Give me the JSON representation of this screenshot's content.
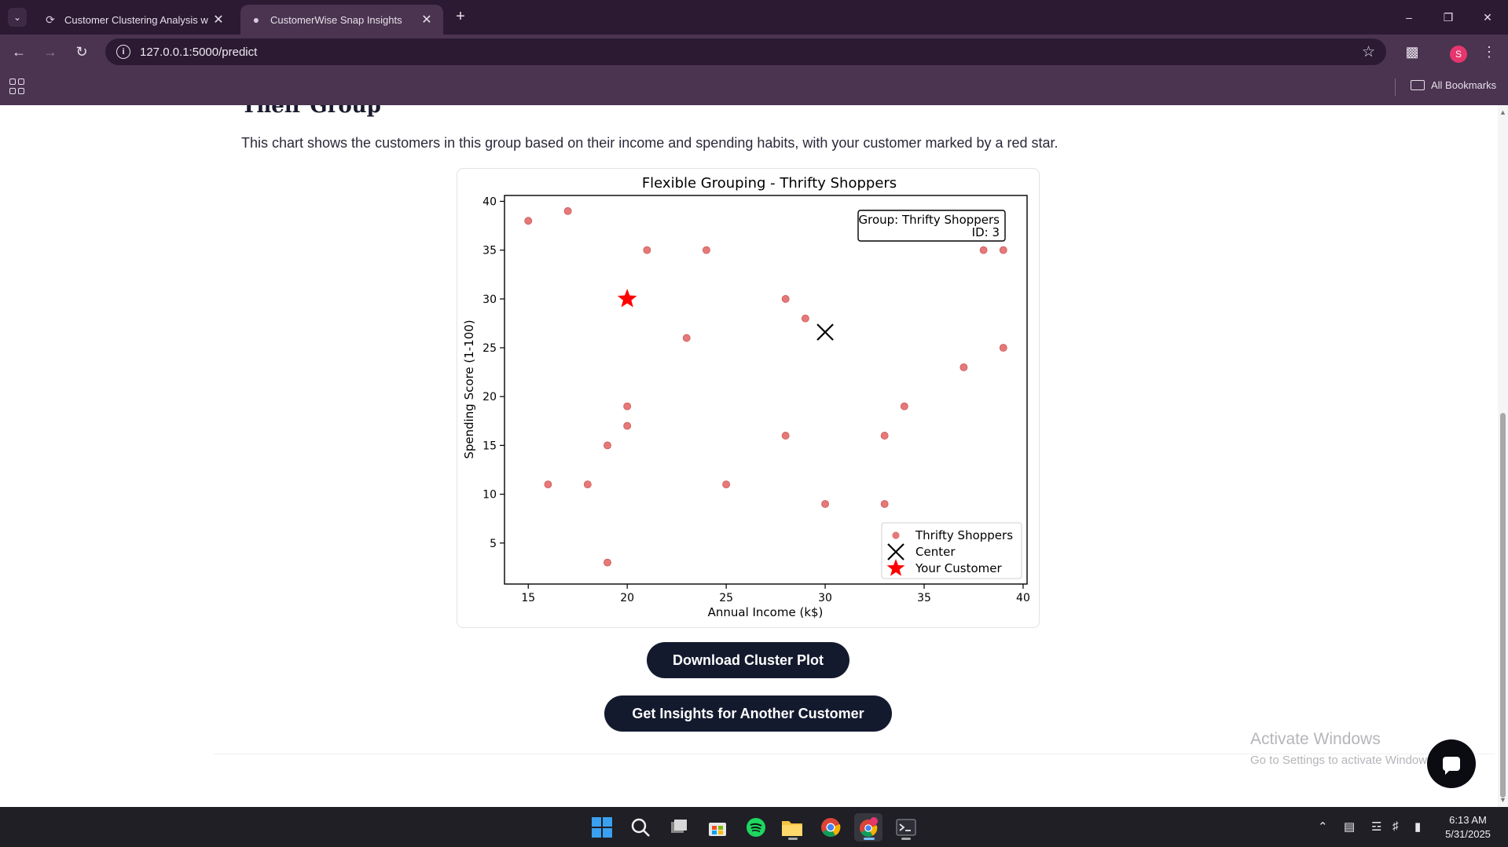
{
  "browser": {
    "tabs": [
      {
        "title": "Customer Clustering Analysis w",
        "favicon": "loading-spinner-icon",
        "active": false
      },
      {
        "title": "CustomerWise Snap Insights",
        "favicon": "globe-icon",
        "active": true
      }
    ],
    "url": "127.0.0.1:5000/predict",
    "profile_initial": "S",
    "all_bookmarks_label": "All Bookmarks"
  },
  "page": {
    "section_heading": "Their Group",
    "description": "This chart shows the customers in this group based on their income and spending habits, with your customer marked by a red star.",
    "download_button": "Download Cluster Plot",
    "another_button": "Get Insights for Another Customer"
  },
  "chart_data": {
    "type": "scatter",
    "title": "Flexible Grouping - Thrifty Shoppers",
    "xlabel": "Annual Income (k$)",
    "ylabel": "Spending Score (1-100)",
    "xlim": [
      13.8,
      40.2
    ],
    "ylim": [
      0.8,
      40.6
    ],
    "xticks": [
      15,
      20,
      25,
      30,
      35,
      40
    ],
    "yticks": [
      5,
      10,
      15,
      20,
      25,
      30,
      35,
      40
    ],
    "grid": false,
    "legend_position": "lower-right",
    "annotation_lines": [
      "Group: Thrifty Shoppers",
      "ID: 3"
    ],
    "series": [
      {
        "name": "Thrifty Shoppers",
        "color": "#e06060",
        "points": [
          [
            15,
            38
          ],
          [
            17,
            39
          ],
          [
            21,
            35
          ],
          [
            24,
            35
          ],
          [
            38,
            35
          ],
          [
            39,
            35
          ],
          [
            28,
            30
          ],
          [
            29,
            28
          ],
          [
            23,
            26
          ],
          [
            39,
            25
          ],
          [
            37,
            23
          ],
          [
            20,
            19
          ],
          [
            34,
            19
          ],
          [
            20,
            17
          ],
          [
            19,
            15
          ],
          [
            28,
            16
          ],
          [
            33,
            16
          ],
          [
            16,
            11
          ],
          [
            18,
            11
          ],
          [
            25,
            11
          ],
          [
            30,
            9
          ],
          [
            33,
            9
          ],
          [
            19,
            3
          ]
        ]
      },
      {
        "name": "Center",
        "color": "#000000",
        "points": [
          [
            30,
            26.6
          ]
        ]
      },
      {
        "name": "Your Customer",
        "color": "#ff0000",
        "points": [
          [
            20,
            30
          ]
        ]
      }
    ]
  },
  "watermark": {
    "title": "Activate Windows",
    "subtitle": "Go to Settings to activate Windows."
  },
  "taskbar": {
    "time": "6:13 AM",
    "date": "5/31/2025"
  }
}
